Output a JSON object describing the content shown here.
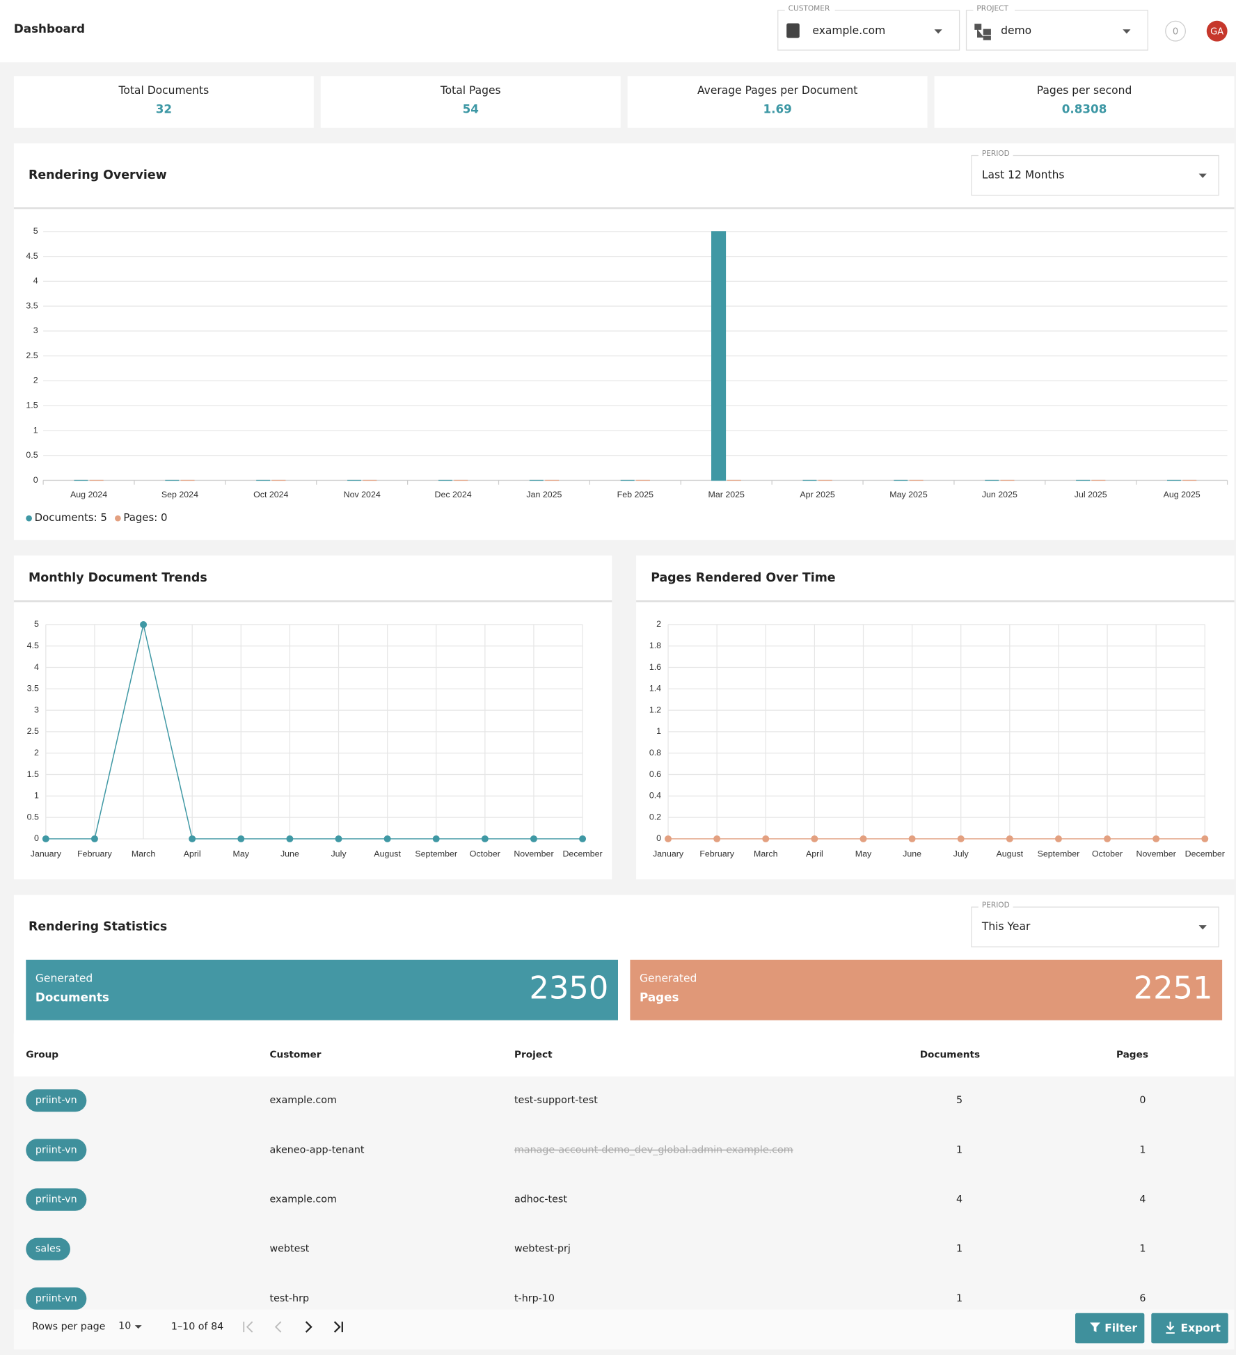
{
  "header": {
    "title": "Dashboard",
    "customer_label": "CUSTOMER",
    "customer": "example.com",
    "project_label": "PROJECT",
    "project": "demo",
    "notifications": 0,
    "avatar": "GA"
  },
  "kpis": [
    {
      "label": "Total Documents",
      "value": 32
    },
    {
      "label": "Total Pages",
      "value": 54
    },
    {
      "label": "Average Pages per Document",
      "value": 1.69
    },
    {
      "label": "Pages per second",
      "value": 0.8308
    }
  ],
  "chart_data": [
    {
      "type": "bar",
      "title": "Rendering Overview",
      "period_label": "PERIOD",
      "period": "Last 12 Months",
      "categories": [
        "Aug 2024",
        "Sep 2024",
        "Oct 2024",
        "Nov 2024",
        "Dec 2024",
        "Jan 2025",
        "Feb 2025",
        "Mar 2025",
        "Apr 2025",
        "May 2025",
        "Jun 2025",
        "Jul 2025",
        "Aug 2025"
      ],
      "series": [
        {
          "name": "Documents: 5",
          "color": "#3f98a4",
          "values": [
            0,
            0,
            0,
            0,
            0,
            0,
            0,
            5,
            0,
            0,
            0,
            0,
            0
          ]
        },
        {
          "name": "Pages: 0",
          "color": "#e3a080",
          "values": [
            0,
            0,
            0,
            0,
            0,
            0,
            0,
            0,
            0,
            0,
            0,
            0,
            0
          ]
        }
      ],
      "ylim": [
        0,
        5
      ],
      "yticks": [
        0,
        0.5,
        1,
        1.5,
        2,
        2.5,
        3,
        3.5,
        4,
        4.5,
        5
      ],
      "grid": true,
      "legend": "bottom-left"
    },
    {
      "type": "line",
      "title": "Monthly Document Trends",
      "categories": [
        "January",
        "February",
        "March",
        "April",
        "May",
        "June",
        "July",
        "August",
        "September",
        "October",
        "November",
        "December"
      ],
      "values": [
        0,
        0,
        5,
        0,
        0,
        0,
        0,
        0,
        0,
        0,
        0,
        0
      ],
      "color": "#3f98a4",
      "ylim": [
        0,
        5
      ],
      "yticks": [
        0,
        0.5,
        1,
        1.5,
        2,
        2.5,
        3,
        3.5,
        4,
        4.5,
        5
      ],
      "grid": true
    },
    {
      "type": "line",
      "title": "Pages Rendered Over Time",
      "categories": [
        "January",
        "February",
        "March",
        "April",
        "May",
        "June",
        "July",
        "August",
        "September",
        "October",
        "November",
        "December"
      ],
      "values": [
        0,
        0,
        0,
        0,
        0,
        0,
        0,
        0,
        0,
        0,
        0,
        0
      ],
      "color": "#e3a080",
      "ylim": [
        0,
        2
      ],
      "yticks": [
        0,
        0.2,
        0.4,
        0.6,
        0.8,
        1,
        1.2,
        1.4,
        1.6,
        1.8,
        2
      ],
      "grid": true
    }
  ],
  "stats": {
    "title": "Rendering Statistics",
    "period_label": "PERIOD",
    "period": "This Year",
    "documents": {
      "caption": "Generated",
      "label": "Documents",
      "value": 2350
    },
    "pages": {
      "caption": "Generated",
      "label": "Pages",
      "value": 2251
    }
  },
  "table": {
    "columns": [
      "Group",
      "Customer",
      "Project",
      "Documents",
      "Pages"
    ],
    "rows": [
      [
        "priint-vn",
        "example.com",
        "test-support-test",
        5,
        0
      ],
      [
        "priint-vn",
        "akeneo-app-tenant",
        "manage-account-demo_dev_global.admin-example.com",
        1,
        1
      ],
      [
        "priint-vn",
        "example.com",
        "adhoc-test",
        4,
        4
      ],
      [
        "sales",
        "webtest",
        "webtest-prj",
        1,
        1
      ],
      [
        "priint-vn",
        "test-hrp",
        "t-hrp-10",
        1,
        6
      ]
    ]
  },
  "footer": {
    "rows_per_page_label": "Rows per page",
    "rows_per_page": 10,
    "range": "1–10 of 84",
    "filter": "Filter",
    "export": "Export"
  }
}
